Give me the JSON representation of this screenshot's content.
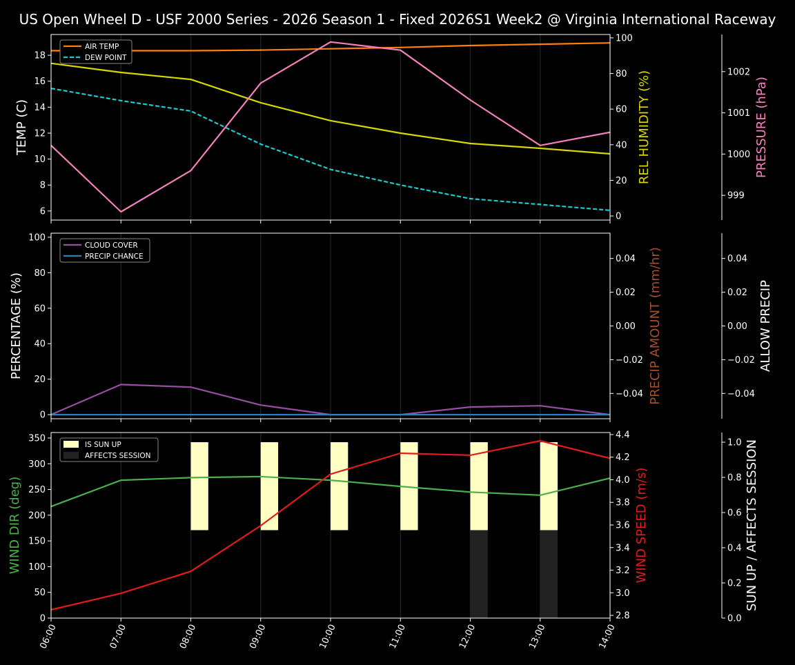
{
  "title": "US Open Wheel D - USF 2000 Series  - 2026 Season 1 - Fixed 2026S1 Week2 @ Virginia International Raceway",
  "chart_data": [
    {
      "type": "line",
      "x": [
        "06:00",
        "07:00",
        "08:00",
        "09:00",
        "10:00",
        "11:00",
        "12:00",
        "13:00",
        "14:00"
      ],
      "ylabel": "TEMP (C)",
      "ylim": [
        5.3,
        19.6
      ],
      "yticks": [
        6,
        8,
        10,
        12,
        14,
        16,
        18
      ],
      "y2label": "REL HUMIDITY (%)",
      "y2lim": [
        -2.3,
        101.9
      ],
      "y2ticks": [
        0,
        20,
        40,
        60,
        80,
        100
      ],
      "y3label": "PRESSURE (hPa)",
      "y3lim": [
        998.4,
        1002.9
      ],
      "y3ticks": [
        999,
        1000,
        1001,
        1002
      ],
      "legend_position": "top-left",
      "grid": "vertical",
      "series": [
        {
          "name": "AIR TEMP",
          "axis": "y",
          "color": "#ff7f0e",
          "dash": false,
          "values": [
            18.35,
            18.35,
            18.35,
            18.4,
            18.5,
            18.6,
            18.75,
            18.85,
            18.95
          ]
        },
        {
          "name": "DEW POINT",
          "axis": "y",
          "color": "#17cfcf",
          "dash": true,
          "values": [
            15.45,
            14.5,
            13.7,
            11.15,
            9.2,
            8.0,
            6.95,
            6.5,
            6.05
          ]
        },
        {
          "axis": "y2",
          "color": "#d8d800",
          "dash": false,
          "values": [
            85.7,
            80.6,
            76.7,
            63.6,
            53.5,
            46.5,
            40.7,
            38.0,
            34.9
          ]
        },
        {
          "axis": "y3",
          "color": "#f781bf",
          "dash": false,
          "values": [
            1000.21,
            998.6,
            999.6,
            1001.72,
            1002.72,
            1002.52,
            1001.31,
            1000.21,
            1000.53
          ]
        }
      ]
    },
    {
      "type": "line",
      "x": [
        "06:00",
        "07:00",
        "08:00",
        "09:00",
        "10:00",
        "11:00",
        "12:00",
        "13:00",
        "14:00"
      ],
      "ylabel": "PERCENTAGE (%)",
      "ylim": [
        -2.3,
        102.3
      ],
      "yticks": [
        0,
        20,
        40,
        60,
        80,
        100
      ],
      "y2label": "PRECIP AMOUNT (mm/hr)",
      "y2lim": [
        -0.055,
        0.055
      ],
      "y2ticks": [
        -0.04,
        -0.02,
        0.0,
        0.02,
        0.04
      ],
      "y3label": "ALLOW PRECIP",
      "y3lim": [
        -0.055,
        0.055
      ],
      "y3ticks": [
        -0.04,
        -0.02,
        0.0,
        0.02,
        0.04
      ],
      "legend_position": "top-left",
      "grid": "vertical",
      "series": [
        {
          "name": "CLOUD COVER",
          "axis": "y",
          "color": "#984ea3",
          "dash": false,
          "values": [
            0,
            17,
            15.5,
            5.4,
            0,
            0,
            4.3,
            5,
            0
          ]
        },
        {
          "name": "PRECIP CHANCE",
          "axis": "y",
          "color": "#377eb8",
          "dash": false,
          "values": [
            0,
            0,
            0,
            0,
            0,
            0,
            0,
            0,
            0
          ]
        }
      ]
    },
    {
      "type": "line",
      "x": [
        "06:00",
        "07:00",
        "08:00",
        "09:00",
        "10:00",
        "11:00",
        "12:00",
        "13:00",
        "14:00"
      ],
      "ylabel": "WIND DIR (deg)",
      "ylim": [
        0,
        360.7
      ],
      "yticks": [
        0,
        50,
        100,
        150,
        200,
        250,
        300,
        350
      ],
      "y2label": "WIND SPEED (m/s)",
      "y2lim": [
        2.776,
        4.418
      ],
      "y2ticks": [
        2.8,
        3.0,
        3.2,
        3.4,
        3.6,
        3.8,
        4.0,
        4.2,
        4.4
      ],
      "y3label": "SUN UP / AFFECTS SESSION",
      "y3lim": [
        0,
        1.055
      ],
      "y3ticks": [
        0.0,
        0.2,
        0.4,
        0.6,
        0.8,
        1.0
      ],
      "legend_position": "top-left",
      "grid": "vertical",
      "series": [
        {
          "axis": "y",
          "color": "#4daf4a",
          "dash": false,
          "values": [
            217,
            268,
            273,
            275,
            268,
            256,
            245,
            239,
            272
          ]
        },
        {
          "axis": "y2",
          "color": "#e41a1c",
          "dash": false,
          "values": [
            2.85,
            2.995,
            3.19,
            3.594,
            4.05,
            4.235,
            4.217,
            4.345,
            4.19
          ]
        }
      ],
      "bars": [
        {
          "name": "IS SUN UP",
          "color": "#ffffc4",
          "values": [
            0,
            0,
            1,
            1,
            1,
            1,
            1,
            1,
            0
          ]
        },
        {
          "name": "AFFECTS SESSION",
          "color": "#222222",
          "values": [
            0,
            0,
            0,
            0,
            0,
            0,
            1,
            1,
            0
          ]
        }
      ]
    }
  ],
  "colors": {
    "background": "#000000",
    "axis": "#ffffff",
    "grid": "#1e1e1e",
    "precip_amount_label": "#a0522d"
  }
}
